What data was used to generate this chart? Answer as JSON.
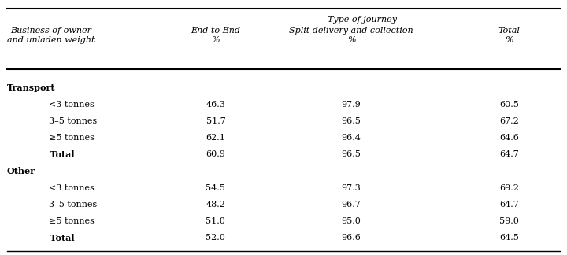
{
  "header_row1": [
    "Business of owner\nand unladen weight",
    "Type of journey",
    "",
    ""
  ],
  "header_col1_line2": "",
  "header_col2_line2": "End to End\n%",
  "header_col3_line2": "Split delivery and collection\n%",
  "header_col4_line2": "Total\n%",
  "header_span": "Type of journey",
  "rows": [
    {
      "label": "Transport",
      "bold": true,
      "indent": false,
      "values": [
        "",
        "",
        ""
      ]
    },
    {
      "label": "<3 tonnes",
      "bold": false,
      "indent": true,
      "values": [
        "46.3",
        "97.9",
        "60.5"
      ]
    },
    {
      "label": "3–5 tonnes",
      "bold": false,
      "indent": true,
      "values": [
        "51.7",
        "96.5",
        "67.2"
      ]
    },
    {
      "label": "≥5 tonnes",
      "bold": false,
      "indent": true,
      "values": [
        "62.1",
        "96.4",
        "64.6"
      ]
    },
    {
      "label": "Total",
      "bold": true,
      "indent": true,
      "values": [
        "60.9",
        "96.5",
        "64.7"
      ]
    },
    {
      "label": "Other",
      "bold": true,
      "indent": false,
      "values": [
        "",
        "",
        ""
      ]
    },
    {
      "label": "<3 tonnes",
      "bold": false,
      "indent": true,
      "values": [
        "54.5",
        "97.3",
        "69.2"
      ]
    },
    {
      "label": "3–5 tonnes",
      "bold": false,
      "indent": true,
      "values": [
        "48.2",
        "96.7",
        "64.7"
      ]
    },
    {
      "label": "≥5 tonnes",
      "bold": false,
      "indent": true,
      "values": [
        "51.0",
        "95.0",
        "59.0"
      ]
    },
    {
      "label": "Total",
      "bold": true,
      "indent": true,
      "values": [
        "52.0",
        "96.6",
        "64.5"
      ]
    }
  ],
  "bg_color": "#f0f0f0",
  "font_family": "serif"
}
